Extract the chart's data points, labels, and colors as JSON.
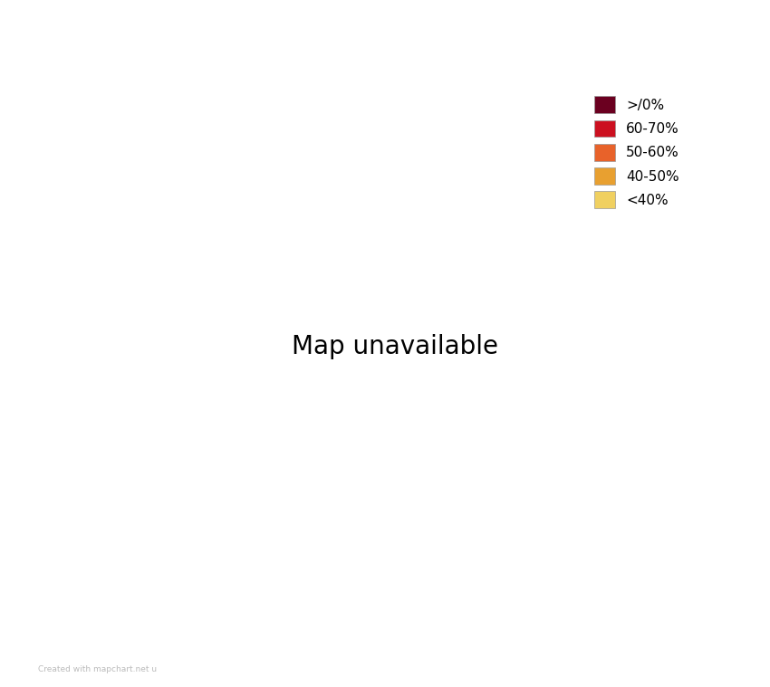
{
  "background_color": "#ffffff",
  "legend_labels": [
    ">/0%",
    "60-70%",
    "50-60%",
    "40-50%",
    "<40%"
  ],
  "legend_colors": [
    "#6b0020",
    "#cc1020",
    "#e8622a",
    "#e8a030",
    "#f0d060"
  ],
  "watermark": "Created with mapchart.net u",
  "state_colors": {
    "Jammu and Kashmir": "#f0d060",
    "Ladakh": "#f0d060",
    "Himachal Pradesh": "#e8622a",
    "Punjab": "#cc1020",
    "Uttarakhand": "#cc1020",
    "Haryana": "#cc1020",
    "Delhi": "#cc1020",
    "Uttar Pradesh": "#6b0020",
    "Rajasthan": "#6b0020",
    "Bihar": "#cc1020",
    "West Bengal": "#cc1020",
    "Sikkim": "#e8622a",
    "Arunachal Pradesh": "#e8622a",
    "Nagaland": "#e8622a",
    "Manipur": "#e8622a",
    "Mizoram": "#cc1020",
    "Tripura": "#e8622a",
    "Meghalaya": "#e8a030",
    "Assam": "#f0d060",
    "Jharkhand": "#cc1020",
    "Odisha": "#e8622a",
    "Chhattisgarh": "#6b0020",
    "Madhya Pradesh": "#6b0020",
    "Gujarat": "#cc1020",
    "Maharashtra": "#cc1020",
    "Goa": "#e8622a",
    "Karnataka": "#cc1020",
    "Andhra Pradesh": "#e8622a",
    "Telangana": "#cc1020",
    "Kerala": "#e8a030",
    "Tamil Nadu": "#f0d060",
    "Puducherry": "#e8622a",
    "Lakshadweep": "#f0d060",
    "Andaman and Nicobar Islands": "#e8622a",
    "Chandigarh": "#cc1020",
    "Dadra and Nagar Haveli and Daman and Diu": "#e8622a",
    "Dadra and Nagar Haveli": "#e8622a",
    "Daman and Diu": "#e8622a"
  },
  "border_color": "#2a1005",
  "border_width": 0.6,
  "figsize": [
    8.5,
    7.59
  ],
  "dpi": 100,
  "map_extent": [
    67.5,
    99.0,
    6.5,
    38.5
  ]
}
